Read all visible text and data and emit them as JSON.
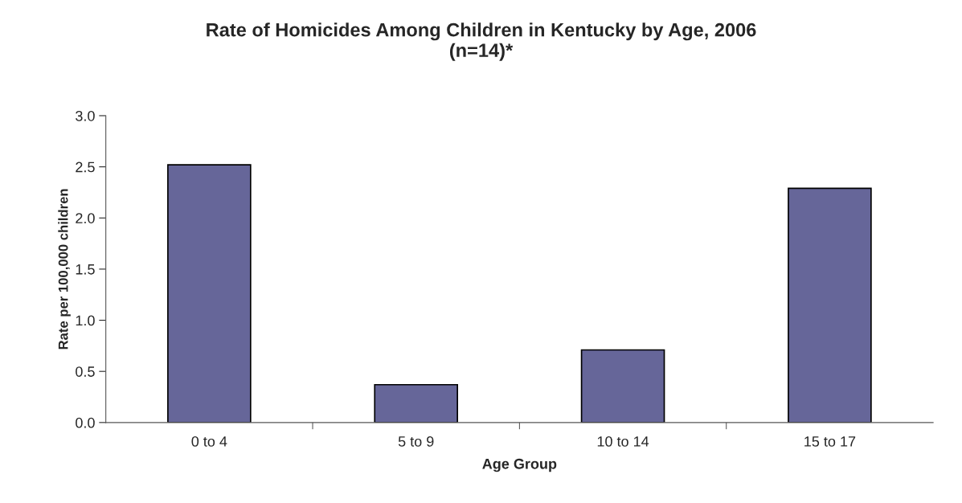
{
  "chart_data": {
    "type": "bar",
    "title": "Rate of Homicides Among Children in Kentucky by Age, 2006\n(n=14)*",
    "xlabel": "Age Group",
    "ylabel": "Rate per 100,000 children",
    "categories": [
      "0 to 4",
      "5 to 9",
      "10 to 14",
      "15 to 17"
    ],
    "values": [
      2.52,
      0.37,
      0.71,
      2.29
    ],
    "color": "#666699",
    "ylim": [
      0,
      3
    ],
    "yticks": [
      {
        "value": 0,
        "label": "0.0"
      },
      {
        "value": 0.5,
        "label": "0.5"
      },
      {
        "value": 1,
        "label": "1.0"
      },
      {
        "value": 1.5,
        "label": "1.5"
      },
      {
        "value": 2,
        "label": "2.0"
      },
      {
        "value": 2.5,
        "label": "2.5"
      },
      {
        "value": 3,
        "label": "3.0"
      }
    ],
    "grid": false
  }
}
